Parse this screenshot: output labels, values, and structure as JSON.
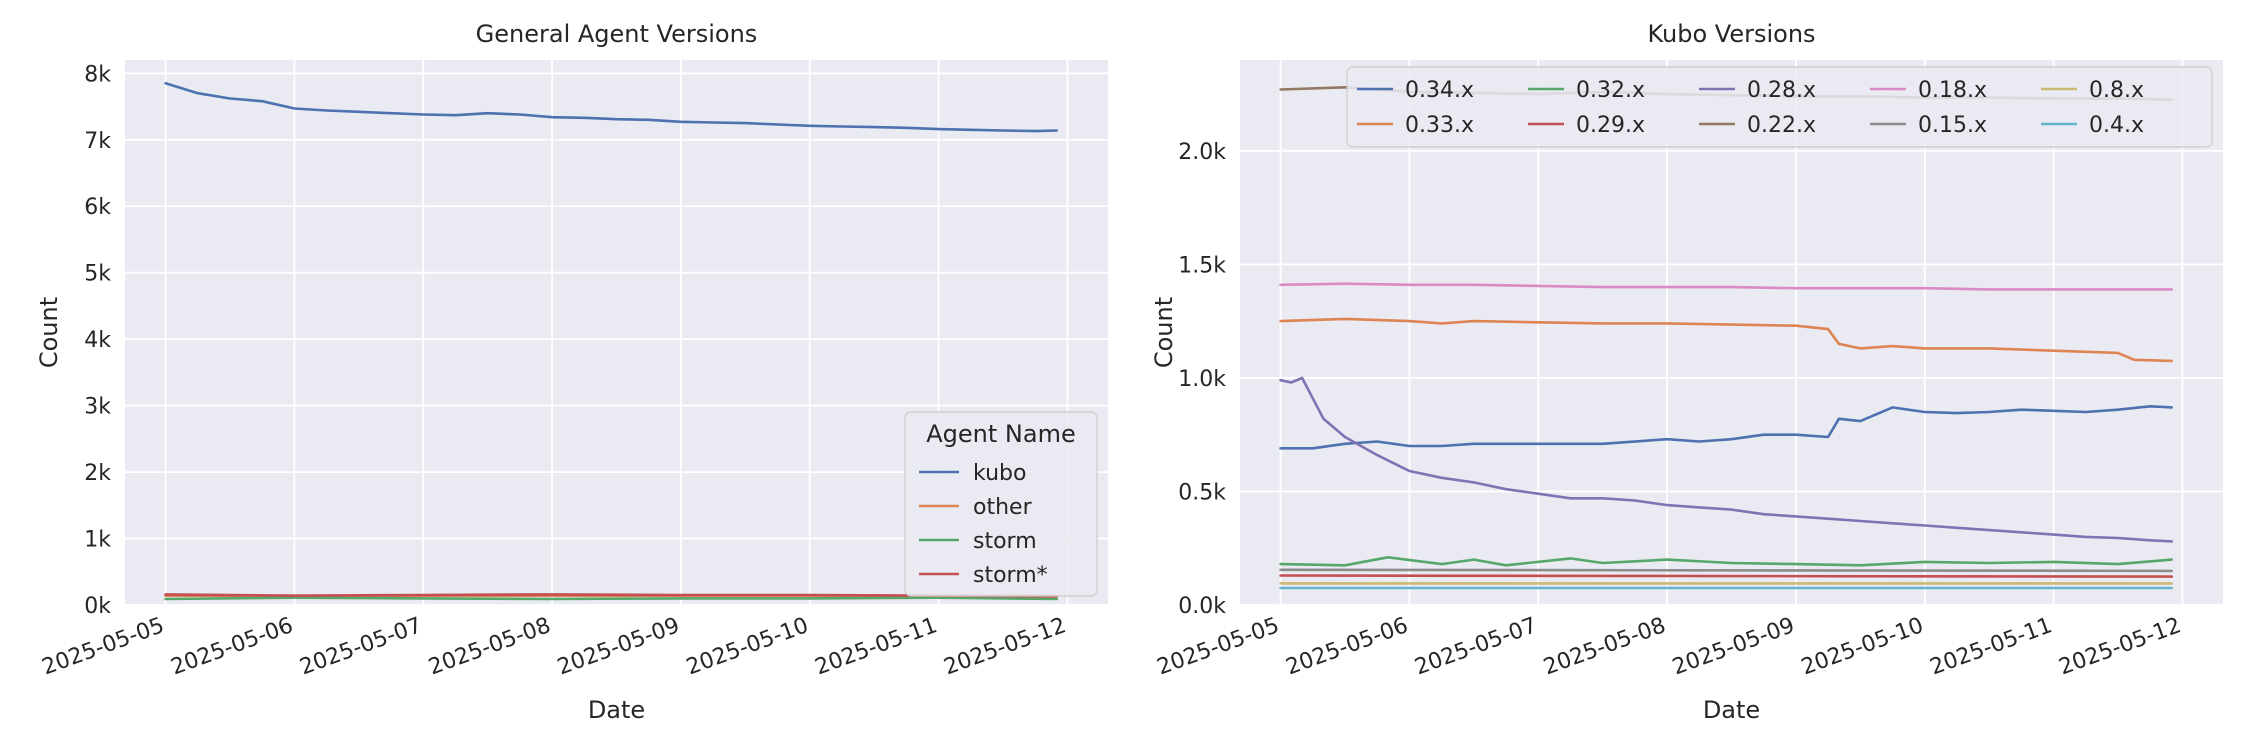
{
  "chart_data": [
    {
      "type": "line",
      "title": "General Agent Versions",
      "xlabel": "Date",
      "ylabel": "Count",
      "x_range": [
        "2025-05-05",
        "2025-05-12"
      ],
      "x_ticks": [
        "2025-05-05",
        "2025-05-06",
        "2025-05-07",
        "2025-05-08",
        "2025-05-09",
        "2025-05-10",
        "2025-05-11",
        "2025-05-12"
      ],
      "ylim": [
        0,
        8200
      ],
      "y_ticks": [
        0,
        1000,
        2000,
        3000,
        4000,
        5000,
        6000,
        7000,
        8000
      ],
      "y_tick_labels": [
        "0k",
        "1k",
        "2k",
        "3k",
        "4k",
        "5k",
        "6k",
        "7k",
        "8k"
      ],
      "grid": true,
      "legend": {
        "title": "Agent Name",
        "placement": "lower-right"
      },
      "series": [
        {
          "name": "kubo",
          "color": "#4c72b0",
          "points": [
            [
              "2025-05-05",
              7850
            ],
            [
              "2025-05-05 06:00",
              7700
            ],
            [
              "2025-05-05 12:00",
              7620
            ],
            [
              "2025-05-05 18:00",
              7580
            ],
            [
              "2025-05-06 00:00",
              7470
            ],
            [
              "2025-05-06 06:00",
              7440
            ],
            [
              "2025-05-06 12:00",
              7420
            ],
            [
              "2025-05-06 18:00",
              7400
            ],
            [
              "2025-05-07 00:00",
              7380
            ],
            [
              "2025-05-07 06:00",
              7370
            ],
            [
              "2025-05-07 12:00",
              7400
            ],
            [
              "2025-05-07 18:00",
              7380
            ],
            [
              "2025-05-08 00:00",
              7340
            ],
            [
              "2025-05-08 06:00",
              7330
            ],
            [
              "2025-05-08 12:00",
              7310
            ],
            [
              "2025-05-08 18:00",
              7300
            ],
            [
              "2025-05-09 00:00",
              7270
            ],
            [
              "2025-05-09 06:00",
              7260
            ],
            [
              "2025-05-09 12:00",
              7250
            ],
            [
              "2025-05-09 18:00",
              7230
            ],
            [
              "2025-05-10 00:00",
              7210
            ],
            [
              "2025-05-10 06:00",
              7200
            ],
            [
              "2025-05-10 12:00",
              7190
            ],
            [
              "2025-05-10 18:00",
              7180
            ],
            [
              "2025-05-11 00:00",
              7160
            ],
            [
              "2025-05-11 06:00",
              7150
            ],
            [
              "2025-05-11 12:00",
              7140
            ],
            [
              "2025-05-11 18:00",
              7130
            ],
            [
              "2025-05-11 22:00",
              7140
            ]
          ]
        },
        {
          "name": "other",
          "color": "#dd8452",
          "points": [
            [
              "2025-05-05",
              140
            ],
            [
              "2025-05-11 22:00",
              140
            ]
          ]
        },
        {
          "name": "storm",
          "color": "#55a868",
          "points": [
            [
              "2025-05-05",
              90
            ],
            [
              "2025-05-06",
              110
            ],
            [
              "2025-05-07",
              100
            ],
            [
              "2025-05-08",
              90
            ],
            [
              "2025-05-09",
              100
            ],
            [
              "2025-05-10",
              100
            ],
            [
              "2025-05-11",
              110
            ],
            [
              "2025-05-11 22:00",
              90
            ]
          ]
        },
        {
          "name": "storm*",
          "color": "#c44e52",
          "points": [
            [
              "2025-05-05",
              160
            ],
            [
              "2025-05-06",
              140
            ],
            [
              "2025-05-07",
              150
            ],
            [
              "2025-05-08",
              160
            ],
            [
              "2025-05-09",
              150
            ],
            [
              "2025-05-10",
              150
            ],
            [
              "2025-05-11",
              140
            ],
            [
              "2025-05-11 22:00",
              130
            ]
          ]
        }
      ]
    },
    {
      "type": "line",
      "title": "Kubo Versions",
      "xlabel": "Date",
      "ylabel": "Count",
      "x_range": [
        "2025-05-05",
        "2025-05-12"
      ],
      "x_ticks": [
        "2025-05-05",
        "2025-05-06",
        "2025-05-07",
        "2025-05-08",
        "2025-05-09",
        "2025-05-10",
        "2025-05-11",
        "2025-05-12"
      ],
      "ylim": [
        0,
        2400
      ],
      "y_ticks": [
        0,
        500,
        1000,
        1500,
        2000
      ],
      "y_tick_labels": [
        "0.0k",
        "0.5k",
        "1.0k",
        "1.5k",
        "2.0k"
      ],
      "grid": true,
      "legend": {
        "placement": "top-right",
        "columns": 5
      },
      "series": [
        {
          "name": "0.34.x",
          "color": "#4c72b0",
          "points": [
            [
              "2025-05-05",
              690
            ],
            [
              "2025-05-05 06:00",
              690
            ],
            [
              "2025-05-05 12:00",
              710
            ],
            [
              "2025-05-05 18:00",
              720
            ],
            [
              "2025-05-06 00:00",
              700
            ],
            [
              "2025-05-06 06:00",
              700
            ],
            [
              "2025-05-06 12:00",
              710
            ],
            [
              "2025-05-07 00:00",
              710
            ],
            [
              "2025-05-07 12:00",
              710
            ],
            [
              "2025-05-08 00:00",
              730
            ],
            [
              "2025-05-08 06:00",
              720
            ],
            [
              "2025-05-08 12:00",
              730
            ],
            [
              "2025-05-08 18:00",
              750
            ],
            [
              "2025-05-09 00:00",
              750
            ],
            [
              "2025-05-09 06:00",
              740
            ],
            [
              "2025-05-09 08:00",
              820
            ],
            [
              "2025-05-09 12:00",
              810
            ],
            [
              "2025-05-09 18:00",
              870
            ],
            [
              "2025-05-10 00:00",
              850
            ],
            [
              "2025-05-10 06:00",
              845
            ],
            [
              "2025-05-10 12:00",
              850
            ],
            [
              "2025-05-10 18:00",
              860
            ],
            [
              "2025-05-11 00:00",
              855
            ],
            [
              "2025-05-11 06:00",
              850
            ],
            [
              "2025-05-11 12:00",
              860
            ],
            [
              "2025-05-11 18:00",
              875
            ],
            [
              "2025-05-11 22:00",
              870
            ]
          ]
        },
        {
          "name": "0.33.x",
          "color": "#dd8452",
          "points": [
            [
              "2025-05-05",
              1250
            ],
            [
              "2025-05-05 12:00",
              1260
            ],
            [
              "2025-05-06 00:00",
              1250
            ],
            [
              "2025-05-06 06:00",
              1240
            ],
            [
              "2025-05-06 12:00",
              1250
            ],
            [
              "2025-05-07 00:00",
              1245
            ],
            [
              "2025-05-07 12:00",
              1240
            ],
            [
              "2025-05-08 00:00",
              1240
            ],
            [
              "2025-05-08 12:00",
              1235
            ],
            [
              "2025-05-09 00:00",
              1230
            ],
            [
              "2025-05-09 06:00",
              1215
            ],
            [
              "2025-05-09 08:00",
              1150
            ],
            [
              "2025-05-09 12:00",
              1130
            ],
            [
              "2025-05-09 18:00",
              1140
            ],
            [
              "2025-05-10 00:00",
              1130
            ],
            [
              "2025-05-10 12:00",
              1130
            ],
            [
              "2025-05-11 00:00",
              1120
            ],
            [
              "2025-05-11 12:00",
              1110
            ],
            [
              "2025-05-11 15:00",
              1080
            ],
            [
              "2025-05-11 22:00",
              1075
            ]
          ]
        },
        {
          "name": "0.32.x",
          "color": "#55a868",
          "points": [
            [
              "2025-05-05",
              180
            ],
            [
              "2025-05-05 12:00",
              175
            ],
            [
              "2025-05-05 20:00",
              210
            ],
            [
              "2025-05-06 06:00",
              180
            ],
            [
              "2025-05-06 12:00",
              200
            ],
            [
              "2025-05-06 18:00",
              175
            ],
            [
              "2025-05-07 06:00",
              205
            ],
            [
              "2025-05-07 12:00",
              185
            ],
            [
              "2025-05-08 00:00",
              200
            ],
            [
              "2025-05-08 12:00",
              185
            ],
            [
              "2025-05-09 00:00",
              180
            ],
            [
              "2025-05-09 12:00",
              175
            ],
            [
              "2025-05-10 00:00",
              190
            ],
            [
              "2025-05-10 12:00",
              185
            ],
            [
              "2025-05-11 00:00",
              190
            ],
            [
              "2025-05-11 12:00",
              180
            ],
            [
              "2025-05-11 22:00",
              200
            ]
          ]
        },
        {
          "name": "0.29.x",
          "color": "#c44e52",
          "points": [
            [
              "2025-05-05",
              130
            ],
            [
              "2025-05-11 22:00",
              125
            ]
          ]
        },
        {
          "name": "0.28.x",
          "color": "#8172b3",
          "points": [
            [
              "2025-05-05",
              990
            ],
            [
              "2025-05-05 02:00",
              980
            ],
            [
              "2025-05-05 04:00",
              1000
            ],
            [
              "2025-05-05 08:00",
              820
            ],
            [
              "2025-05-05 12:00",
              740
            ],
            [
              "2025-05-05 18:00",
              660
            ],
            [
              "2025-05-06 00:00",
              590
            ],
            [
              "2025-05-06 06:00",
              560
            ],
            [
              "2025-05-06 12:00",
              540
            ],
            [
              "2025-05-06 18:00",
              510
            ],
            [
              "2025-05-07 00:00",
              490
            ],
            [
              "2025-05-07 06:00",
              470
            ],
            [
              "2025-05-07 12:00",
              470
            ],
            [
              "2025-05-07 18:00",
              460
            ],
            [
              "2025-05-08 00:00",
              440
            ],
            [
              "2025-05-08 06:00",
              430
            ],
            [
              "2025-05-08 12:00",
              420
            ],
            [
              "2025-05-08 18:00",
              400
            ],
            [
              "2025-05-09 00:00",
              390
            ],
            [
              "2025-05-09 06:00",
              380
            ],
            [
              "2025-05-09 12:00",
              370
            ],
            [
              "2025-05-09 18:00",
              360
            ],
            [
              "2025-05-10 00:00",
              350
            ],
            [
              "2025-05-10 06:00",
              340
            ],
            [
              "2025-05-10 12:00",
              330
            ],
            [
              "2025-05-10 18:00",
              320
            ],
            [
              "2025-05-11 00:00",
              310
            ],
            [
              "2025-05-11 06:00",
              300
            ],
            [
              "2025-05-11 12:00",
              295
            ],
            [
              "2025-05-11 18:00",
              285
            ],
            [
              "2025-05-11 22:00",
              280
            ]
          ]
        },
        {
          "name": "0.22.x",
          "color": "#937860",
          "points": [
            [
              "2025-05-05",
              2270
            ],
            [
              "2025-05-05 12:00",
              2280
            ],
            [
              "2025-05-06 00:00",
              2260
            ],
            [
              "2025-05-06 12:00",
              2255
            ],
            [
              "2025-05-07 00:00",
              2250
            ],
            [
              "2025-05-07 12:00",
              2260
            ],
            [
              "2025-05-08 00:00",
              2250
            ],
            [
              "2025-05-08 12:00",
              2245
            ],
            [
              "2025-05-09 00:00",
              2240
            ],
            [
              "2025-05-09 12:00",
              2240
            ],
            [
              "2025-05-10 00:00",
              2235
            ],
            [
              "2025-05-10 12:00",
              2235
            ],
            [
              "2025-05-11 00:00",
              2230
            ],
            [
              "2025-05-11 12:00",
              2230
            ],
            [
              "2025-05-11 22:00",
              2225
            ]
          ]
        },
        {
          "name": "0.18.x",
          "color": "#da8bc3",
          "points": [
            [
              "2025-05-05",
              1410
            ],
            [
              "2025-05-05 12:00",
              1415
            ],
            [
              "2025-05-06 00:00",
              1410
            ],
            [
              "2025-05-06 12:00",
              1410
            ],
            [
              "2025-05-07 00:00",
              1405
            ],
            [
              "2025-05-07 12:00",
              1400
            ],
            [
              "2025-05-08 00:00",
              1400
            ],
            [
              "2025-05-08 12:00",
              1400
            ],
            [
              "2025-05-09 00:00",
              1395
            ],
            [
              "2025-05-09 12:00",
              1395
            ],
            [
              "2025-05-10 00:00",
              1395
            ],
            [
              "2025-05-10 12:00",
              1390
            ],
            [
              "2025-05-11 00:00",
              1390
            ],
            [
              "2025-05-11 12:00",
              1390
            ],
            [
              "2025-05-11 22:00",
              1390
            ]
          ]
        },
        {
          "name": "0.15.x",
          "color": "#8c8c8c",
          "points": [
            [
              "2025-05-05",
              155
            ],
            [
              "2025-05-11 22:00",
              150
            ]
          ]
        },
        {
          "name": "0.8.x",
          "color": "#ccb974",
          "points": [
            [
              "2025-05-05",
              95
            ],
            [
              "2025-05-11 22:00",
              95
            ]
          ]
        },
        {
          "name": "0.4.x",
          "color": "#64b5cd",
          "points": [
            [
              "2025-05-05",
              75
            ],
            [
              "2025-05-11 22:00",
              75
            ]
          ]
        }
      ]
    }
  ]
}
